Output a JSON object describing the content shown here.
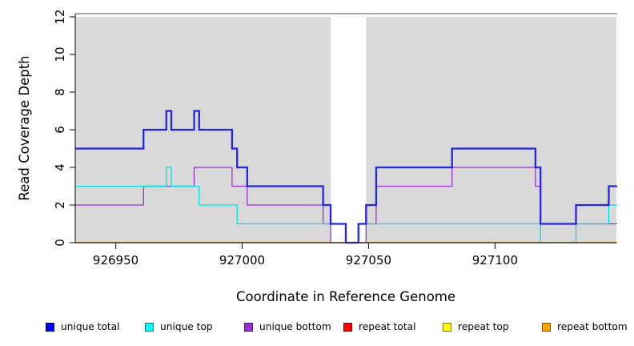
{
  "figure": {
    "background": "#ffffff"
  },
  "chart_data": {
    "type": "line",
    "subtype": "step-after-coverage-plot",
    "title": "",
    "xlabel": "Coordinate in Reference Genome",
    "ylabel": "Read Coverage Depth",
    "x_range": [
      926934,
      927148
    ],
    "ylim": [
      0,
      12
    ],
    "x_ticks": [
      926950,
      927000,
      927050,
      927100
    ],
    "x_tick_labels": [
      "926950",
      "927000",
      "927050",
      "927100"
    ],
    "y_ticks": [
      0,
      2,
      4,
      6,
      8,
      10,
      12
    ],
    "y_tick_labels": [
      "0",
      "2",
      "4",
      "6",
      "8",
      "10",
      "12"
    ],
    "grid": "off",
    "panel_background": "#d9d9d9",
    "panel_top_border_color": "#8c8c8c",
    "axis_color": "#2b2b2b",
    "masked_region": {
      "start": 927035,
      "end": 927049,
      "color": "#ffffff"
    },
    "series": [
      {
        "name": "repeat total",
        "color": "#dd0000",
        "line_width": 1.3,
        "points": [
          [
            926934,
            0
          ]
        ]
      },
      {
        "name": "repeat top",
        "color": "#ffff00",
        "line_width": 1.3,
        "points": [
          [
            926934,
            0
          ]
        ]
      },
      {
        "name": "repeat bottom",
        "color": "#ffa500",
        "line_width": 1.6,
        "points": [
          [
            926934,
            0
          ]
        ]
      },
      {
        "name": "unique bottom",
        "color": "#9932cc",
        "line_width": 1.3,
        "points": [
          [
            926934,
            2
          ],
          [
            926961,
            3
          ],
          [
            926981,
            4
          ],
          [
            926996,
            3
          ],
          [
            927002,
            2
          ],
          [
            927032,
            1
          ],
          [
            927035,
            0
          ],
          [
            927049,
            1
          ],
          [
            927053,
            3
          ],
          [
            927083,
            4
          ],
          [
            927116,
            3
          ],
          [
            927118,
            1
          ]
        ]
      },
      {
        "name": "unique top",
        "color": "#00e0e0",
        "line_width": 1.3,
        "points": [
          [
            926934,
            3
          ],
          [
            926970,
            4
          ],
          [
            926972,
            3
          ],
          [
            926983,
            2
          ],
          [
            926998,
            1
          ],
          [
            927041,
            0
          ],
          [
            927046,
            1
          ],
          [
            927118,
            0
          ],
          [
            927132,
            1
          ],
          [
            927145,
            2
          ]
        ]
      },
      {
        "name": "unique total",
        "color": "#2525dd",
        "line_width": 2.3,
        "points": [
          [
            926934,
            5
          ],
          [
            926961,
            6
          ],
          [
            926970,
            7
          ],
          [
            926972,
            6
          ],
          [
            926981,
            7
          ],
          [
            926983,
            6
          ],
          [
            926996,
            5
          ],
          [
            926998,
            4
          ],
          [
            927002,
            3
          ],
          [
            927032,
            2
          ],
          [
            927035,
            1
          ],
          [
            927041,
            0
          ],
          [
            927046,
            1
          ],
          [
            927049,
            2
          ],
          [
            927053,
            4
          ],
          [
            927083,
            5
          ],
          [
            927116,
            4
          ],
          [
            927118,
            1
          ],
          [
            927132,
            2
          ],
          [
            927145,
            3
          ]
        ]
      }
    ],
    "legend": {
      "position": "bottom",
      "items": [
        {
          "label": "unique total",
          "color": "#0000ee"
        },
        {
          "label": "unique top",
          "color": "#00ffff"
        },
        {
          "label": "unique bottom",
          "color": "#9932cc"
        },
        {
          "label": "repeat total",
          "color": "#ff0000"
        },
        {
          "label": "repeat top",
          "color": "#ffff00"
        },
        {
          "label": "repeat bottom",
          "color": "#ffa500"
        }
      ]
    }
  }
}
